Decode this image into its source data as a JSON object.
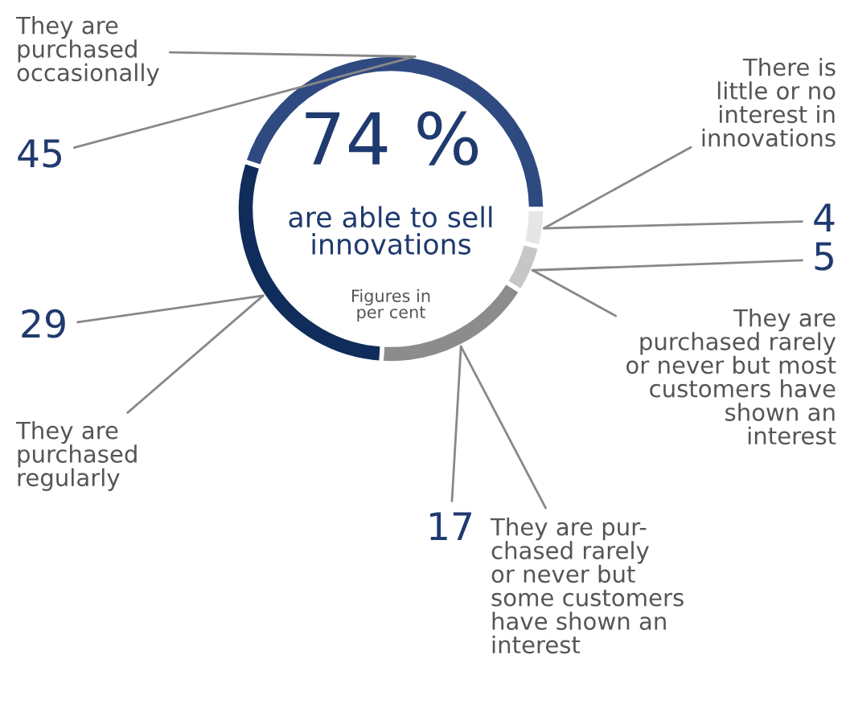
{
  "chart_data": {
    "type": "donut",
    "categories": [
      "There is\nlittle or no\ninterest in\ninnovations",
      "They are\npurchased rarely\nor never but most\ncustomers have\nshown an\ninterest",
      "They are pur-\nchased rarely\nor never but\nsome customers\nhave shown an\ninterest",
      "They are\npurchased\nregularly",
      "They are\npurchased\noccasionally"
    ],
    "values": [
      4,
      5,
      17,
      29,
      45
    ],
    "colors": [
      "#e6e6e6",
      "#c6c6c6",
      "#8c8c8c",
      "#102c5a",
      "#2f4a80"
    ],
    "data_labels": true,
    "legend": false,
    "annotations": [
      "74 %",
      "are able to sell\ninnovations",
      "Figures in\nper cent"
    ]
  }
}
